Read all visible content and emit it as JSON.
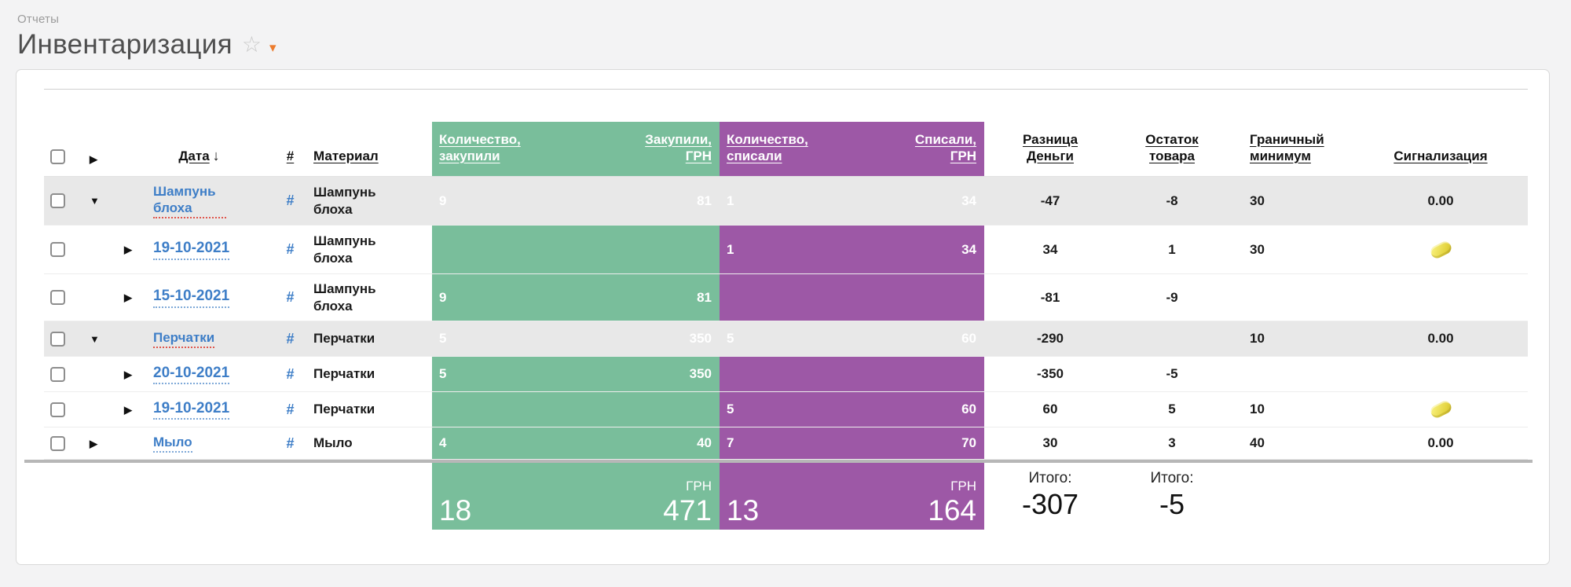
{
  "page": {
    "breadcrumb": "Отчеты",
    "title": "Инвентаризация"
  },
  "icons": {
    "favorite": "☆",
    "title_dropdown": "▾",
    "expand_all": "▶",
    "collapsed": "▶",
    "expanded": "▼",
    "sort_desc": "↓",
    "alarm_icon_name": "yellow-soap-indicator"
  },
  "colors": {
    "purchase_green": "#79be9b",
    "writeoff_purple": "#9d58a6",
    "group_row_gray": "#e8e8e8",
    "link_blue": "#3e7ec7",
    "alarm_yellow": "#e3d33f"
  },
  "table": {
    "headers": {
      "date": "Дата",
      "hash": "#",
      "material": "Материал",
      "qty_buy_l1": "Количество,",
      "qty_buy_l2": "закупили",
      "sum_buy_l1": "Закупили,",
      "sum_buy_l2": "ГРН",
      "qty_wo_l1": "Количество,",
      "qty_wo_l2": "списали",
      "sum_wo_l1": "Списали,",
      "sum_wo_l2": "ГРН",
      "diff_l1": "Разница",
      "diff_l2": "Деньги",
      "remain_l1": "Остаток",
      "remain_l2": "товара",
      "min_l1": "Граничный",
      "min_l2": "минимум",
      "alarm": "Сигнализация"
    },
    "rows": [
      {
        "type": "group",
        "expanded": true,
        "label": "Шампунь блоха",
        "hash": "#",
        "material": "Шампунь блоха",
        "qty_buy": "9",
        "sum_buy": "81",
        "qty_wo": "1",
        "sum_wo": "34",
        "diff": "-47",
        "remain": "-8",
        "minimum": "30",
        "alarm": "0.00"
      },
      {
        "type": "detail",
        "label": "19-10-2021",
        "hash": "#",
        "material": "Шампунь блоха",
        "qty_buy": "",
        "sum_buy": "",
        "qty_wo": "1",
        "sum_wo": "34",
        "diff": "34",
        "remain": "1",
        "minimum": "30",
        "alarm_icon": true
      },
      {
        "type": "detail",
        "label": "15-10-2021",
        "hash": "#",
        "material": "Шампунь блоха",
        "qty_buy": "9",
        "sum_buy": "81",
        "qty_wo": "",
        "sum_wo": "",
        "diff": "-81",
        "remain": "-9",
        "minimum": "",
        "alarm": ""
      },
      {
        "type": "group",
        "expanded": true,
        "label": "Перчатки",
        "hash": "#",
        "material": "Перчатки",
        "qty_buy": "5",
        "sum_buy": "350",
        "qty_wo": "5",
        "sum_wo": "60",
        "diff": "-290",
        "remain": "",
        "minimum": "10",
        "alarm": "0.00"
      },
      {
        "type": "detail",
        "label": "20-10-2021",
        "hash": "#",
        "material": "Перчатки",
        "qty_buy": "5",
        "sum_buy": "350",
        "qty_wo": "",
        "sum_wo": "",
        "diff": "-350",
        "remain": "-5",
        "minimum": "",
        "alarm": ""
      },
      {
        "type": "detail",
        "label": "19-10-2021",
        "hash": "#",
        "material": "Перчатки",
        "qty_buy": "",
        "sum_buy": "",
        "qty_wo": "5",
        "sum_wo": "60",
        "diff": "60",
        "remain": "5",
        "minimum": "10",
        "alarm_icon": true
      },
      {
        "type": "group",
        "expanded": false,
        "label": "Мыло",
        "hash": "#",
        "material": "Мыло",
        "qty_buy": "4",
        "sum_buy": "40",
        "qty_wo": "7",
        "sum_wo": "70",
        "diff": "30",
        "remain": "3",
        "minimum": "40",
        "alarm": "0.00"
      }
    ],
    "footer": {
      "buy_qty_total": "18",
      "buy_currency": "ГРН",
      "buy_sum_total": "471",
      "writeoff_qty_total": "13",
      "writeoff_currency": "ГРН",
      "writeoff_sum_total": "164",
      "totals_label_diff": "Итого:",
      "diff_total": "-307",
      "totals_label_remain": "Итого:",
      "remain_total": "-5"
    }
  }
}
